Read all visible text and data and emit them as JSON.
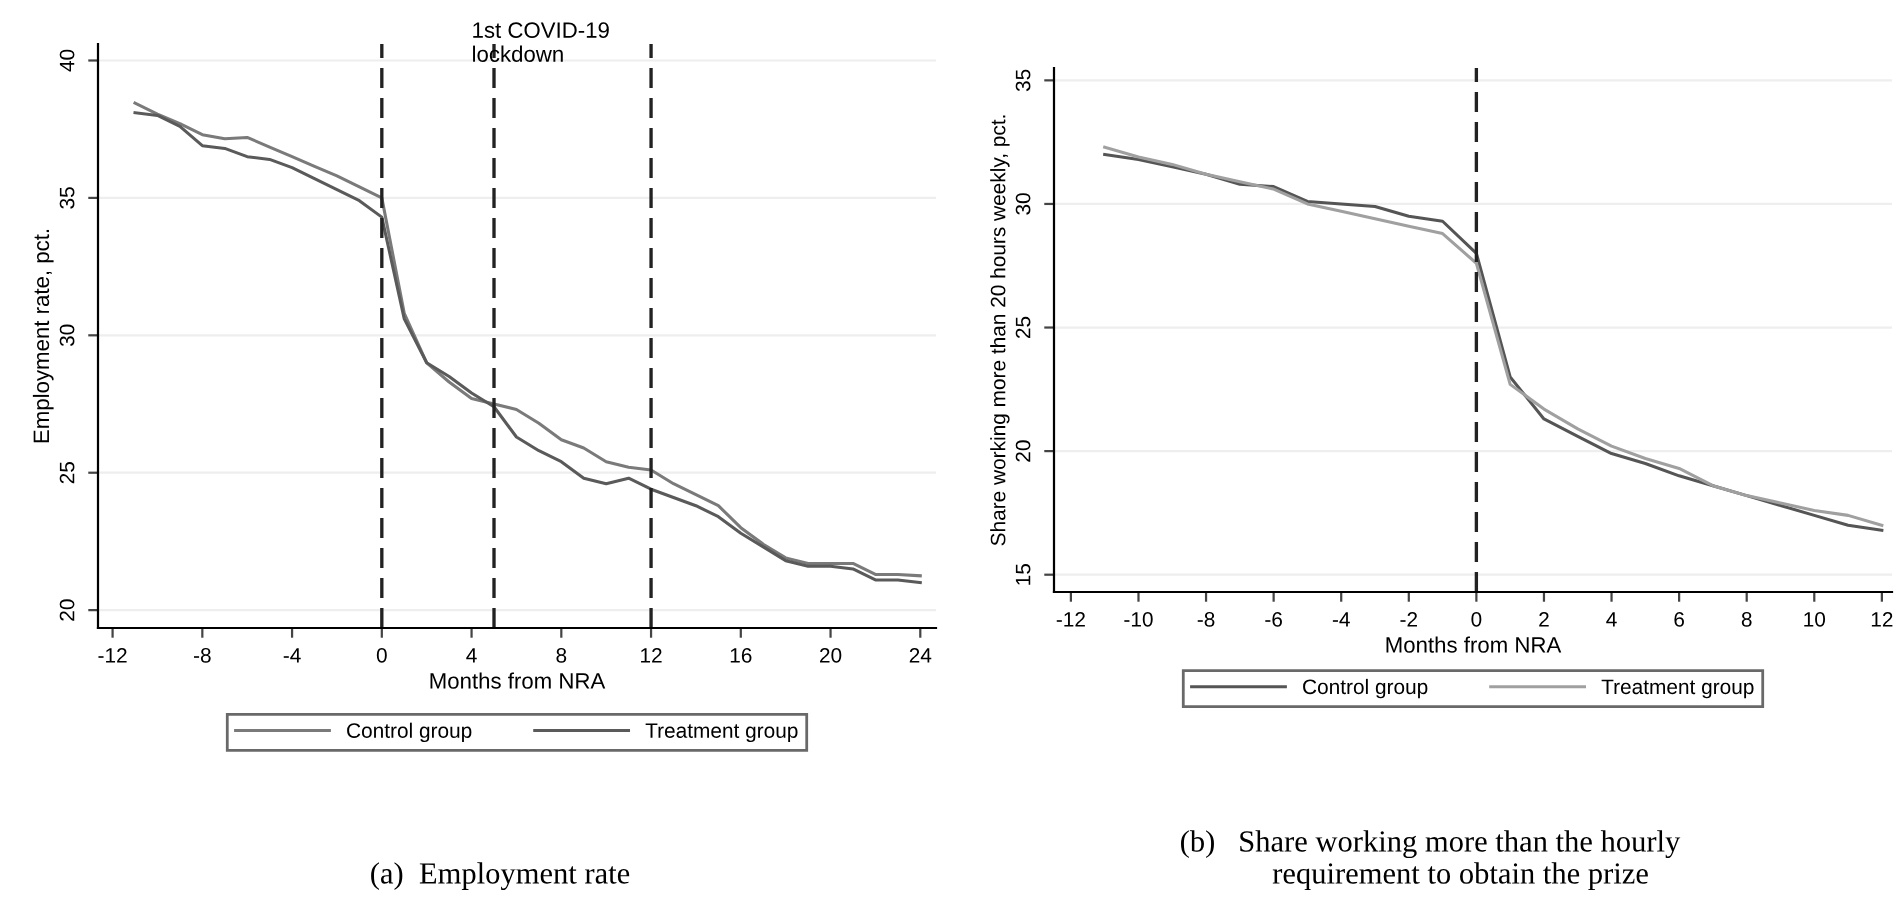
{
  "chart_data": [
    {
      "type": "line",
      "xlabel": "Months from NRA",
      "ylabel": "Employment rate, pct.",
      "xlim": [
        -12.65,
        24.7
      ],
      "ylim": [
        19.35,
        40.6
      ],
      "xticks": [
        -12,
        -8,
        -4,
        0,
        4,
        8,
        12,
        16,
        20,
        24
      ],
      "yticks": [
        20,
        25,
        30,
        35,
        40
      ],
      "grid": "y",
      "legend": "bottom",
      "line_style": "solid",
      "x": [
        -11,
        -10,
        -9,
        -8,
        -7,
        -6,
        -5,
        -4,
        -3,
        -2,
        -1,
        0,
        1,
        2,
        3,
        4,
        5,
        6,
        7,
        8,
        9,
        10,
        11,
        12,
        13,
        14,
        15,
        16,
        17,
        18,
        19,
        20,
        21,
        22,
        23,
        24
      ],
      "series": [
        {
          "name": "Control group",
          "color": "#7a7a7a",
          "values": [
            38.45,
            38.05,
            37.7,
            37.3,
            37.15,
            37.2,
            36.85,
            36.5,
            36.15,
            35.8,
            35.4,
            35.0,
            30.8,
            29.0,
            28.3,
            27.7,
            27.5,
            27.3,
            26.8,
            26.2,
            25.9,
            25.4,
            25.2,
            25.1,
            24.6,
            24.2,
            23.8,
            23.0,
            22.4,
            21.9,
            21.7,
            21.7,
            21.7,
            21.3,
            21.3,
            21.25
          ]
        },
        {
          "name": "Treatment group",
          "color": "#5a5a5a",
          "values": [
            38.1,
            38.0,
            37.6,
            36.9,
            36.8,
            36.5,
            36.4,
            36.1,
            35.7,
            35.3,
            34.9,
            34.3,
            30.6,
            29.0,
            28.5,
            27.9,
            27.4,
            26.3,
            25.8,
            25.4,
            24.8,
            24.6,
            24.8,
            24.4,
            24.1,
            23.8,
            23.4,
            22.8,
            22.3,
            21.8,
            21.6,
            21.6,
            21.5,
            21.1,
            21.1,
            21.0
          ]
        }
      ],
      "ref_lines": [
        {
          "axis": "x",
          "value": 0,
          "label": null,
          "color": "#222222",
          "line_style": "dashed"
        },
        {
          "axis": "x",
          "value": 5,
          "label": "1st COVID-19\nlockdown",
          "color": "#222222",
          "line_style": "dashed"
        },
        {
          "axis": "x",
          "value": 12,
          "label": null,
          "color": "#222222",
          "line_style": "dashed"
        }
      ],
      "annotations": [
        "(a)  Employment rate"
      ]
    },
    {
      "type": "line",
      "xlabel": "Months from NRA",
      "ylabel": "Share working more than 20 hours weekly, pct.",
      "xlim": [
        -12.5,
        12.3
      ],
      "ylim": [
        14.3,
        35.5
      ],
      "xticks": [
        -12,
        -10,
        -8,
        -6,
        -4,
        -2,
        0,
        2,
        4,
        6,
        8,
        10,
        12
      ],
      "yticks": [
        15,
        20,
        25,
        30,
        35
      ],
      "grid": "y",
      "legend": "bottom",
      "line_style": "solid",
      "x": [
        -11,
        -10,
        -9,
        -8,
        -7,
        -6,
        -5,
        -4,
        -3,
        -2,
        -1,
        0,
        1,
        2,
        3,
        4,
        5,
        6,
        7,
        8,
        9,
        10,
        11,
        12
      ],
      "series": [
        {
          "name": "Control group",
          "color": "#555555",
          "values": [
            32.0,
            31.8,
            31.5,
            31.2,
            30.8,
            30.7,
            30.1,
            30.0,
            29.9,
            29.5,
            29.3,
            28.0,
            23.0,
            21.3,
            20.6,
            19.9,
            19.5,
            19.0,
            18.6,
            18.2,
            17.8,
            17.4,
            17.0,
            16.8
          ]
        },
        {
          "name": "Treatment group",
          "color": "#a0a0a0",
          "values": [
            32.3,
            31.9,
            31.6,
            31.2,
            30.9,
            30.6,
            30.0,
            29.7,
            29.4,
            29.1,
            28.8,
            27.6,
            22.7,
            21.7,
            20.9,
            20.2,
            19.7,
            19.3,
            18.6,
            18.2,
            17.9,
            17.6,
            17.4,
            17.0
          ]
        }
      ],
      "ref_lines": [
        {
          "axis": "x",
          "value": 0,
          "label": null,
          "color": "#222222",
          "line_style": "dashed"
        }
      ],
      "annotations": [
        "(b)   Share working more than the hourly\n        requirement to obtain the prize"
      ]
    }
  ]
}
